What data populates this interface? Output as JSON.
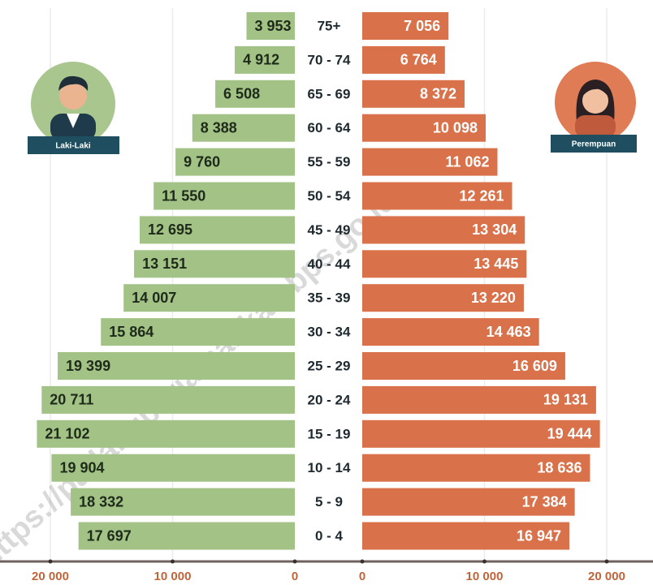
{
  "chart_data": {
    "type": "pyramid",
    "categories": [
      "75+",
      "70 - 74",
      "65 - 69",
      "60 - 64",
      "55 - 59",
      "50 - 54",
      "45 - 49",
      "40 - 44",
      "35 - 39",
      "30 - 34",
      "25 - 29",
      "20 - 24",
      "15 - 19",
      "10 - 14",
      "5 - 9",
      "0 - 4"
    ],
    "series": [
      {
        "name": "Laki-Laki",
        "color": "#a3c285",
        "values": [
          3953,
          4912,
          6508,
          8388,
          9760,
          11550,
          12695,
          13151,
          14007,
          15864,
          19399,
          20711,
          21102,
          19904,
          18332,
          17697
        ],
        "value_labels": [
          "3 953",
          "4 912",
          "6 508",
          "8 388",
          "9 760",
          "11 550",
          "12 695",
          "13 151",
          "14 007",
          "15 864",
          "19 399",
          "20 711",
          "21 102",
          "19 904",
          "18 332",
          "17 697"
        ]
      },
      {
        "name": "Perempuan",
        "color": "#d9714a",
        "values": [
          7056,
          6764,
          8372,
          10098,
          11062,
          12261,
          13304,
          13445,
          13220,
          14463,
          16609,
          19131,
          19444,
          18636,
          17384,
          16947
        ],
        "value_labels": [
          "7 056",
          "6 764",
          "8 372",
          "10 098",
          "11 062",
          "12 261",
          "13 304",
          "13 445",
          "13 220",
          "14 463",
          "16 609",
          "19 131",
          "19 444",
          "18 636",
          "17 384",
          "16 947"
        ]
      }
    ],
    "xlim": [
      0,
      20000
    ],
    "xticks": [
      {
        "value": 0,
        "label": "0"
      },
      {
        "value": 10000,
        "label": "10 000"
      },
      {
        "value": 20000,
        "label": "20 000"
      }
    ],
    "grid": true
  },
  "watermark": "https://padangpariamankab.bps.go.id"
}
